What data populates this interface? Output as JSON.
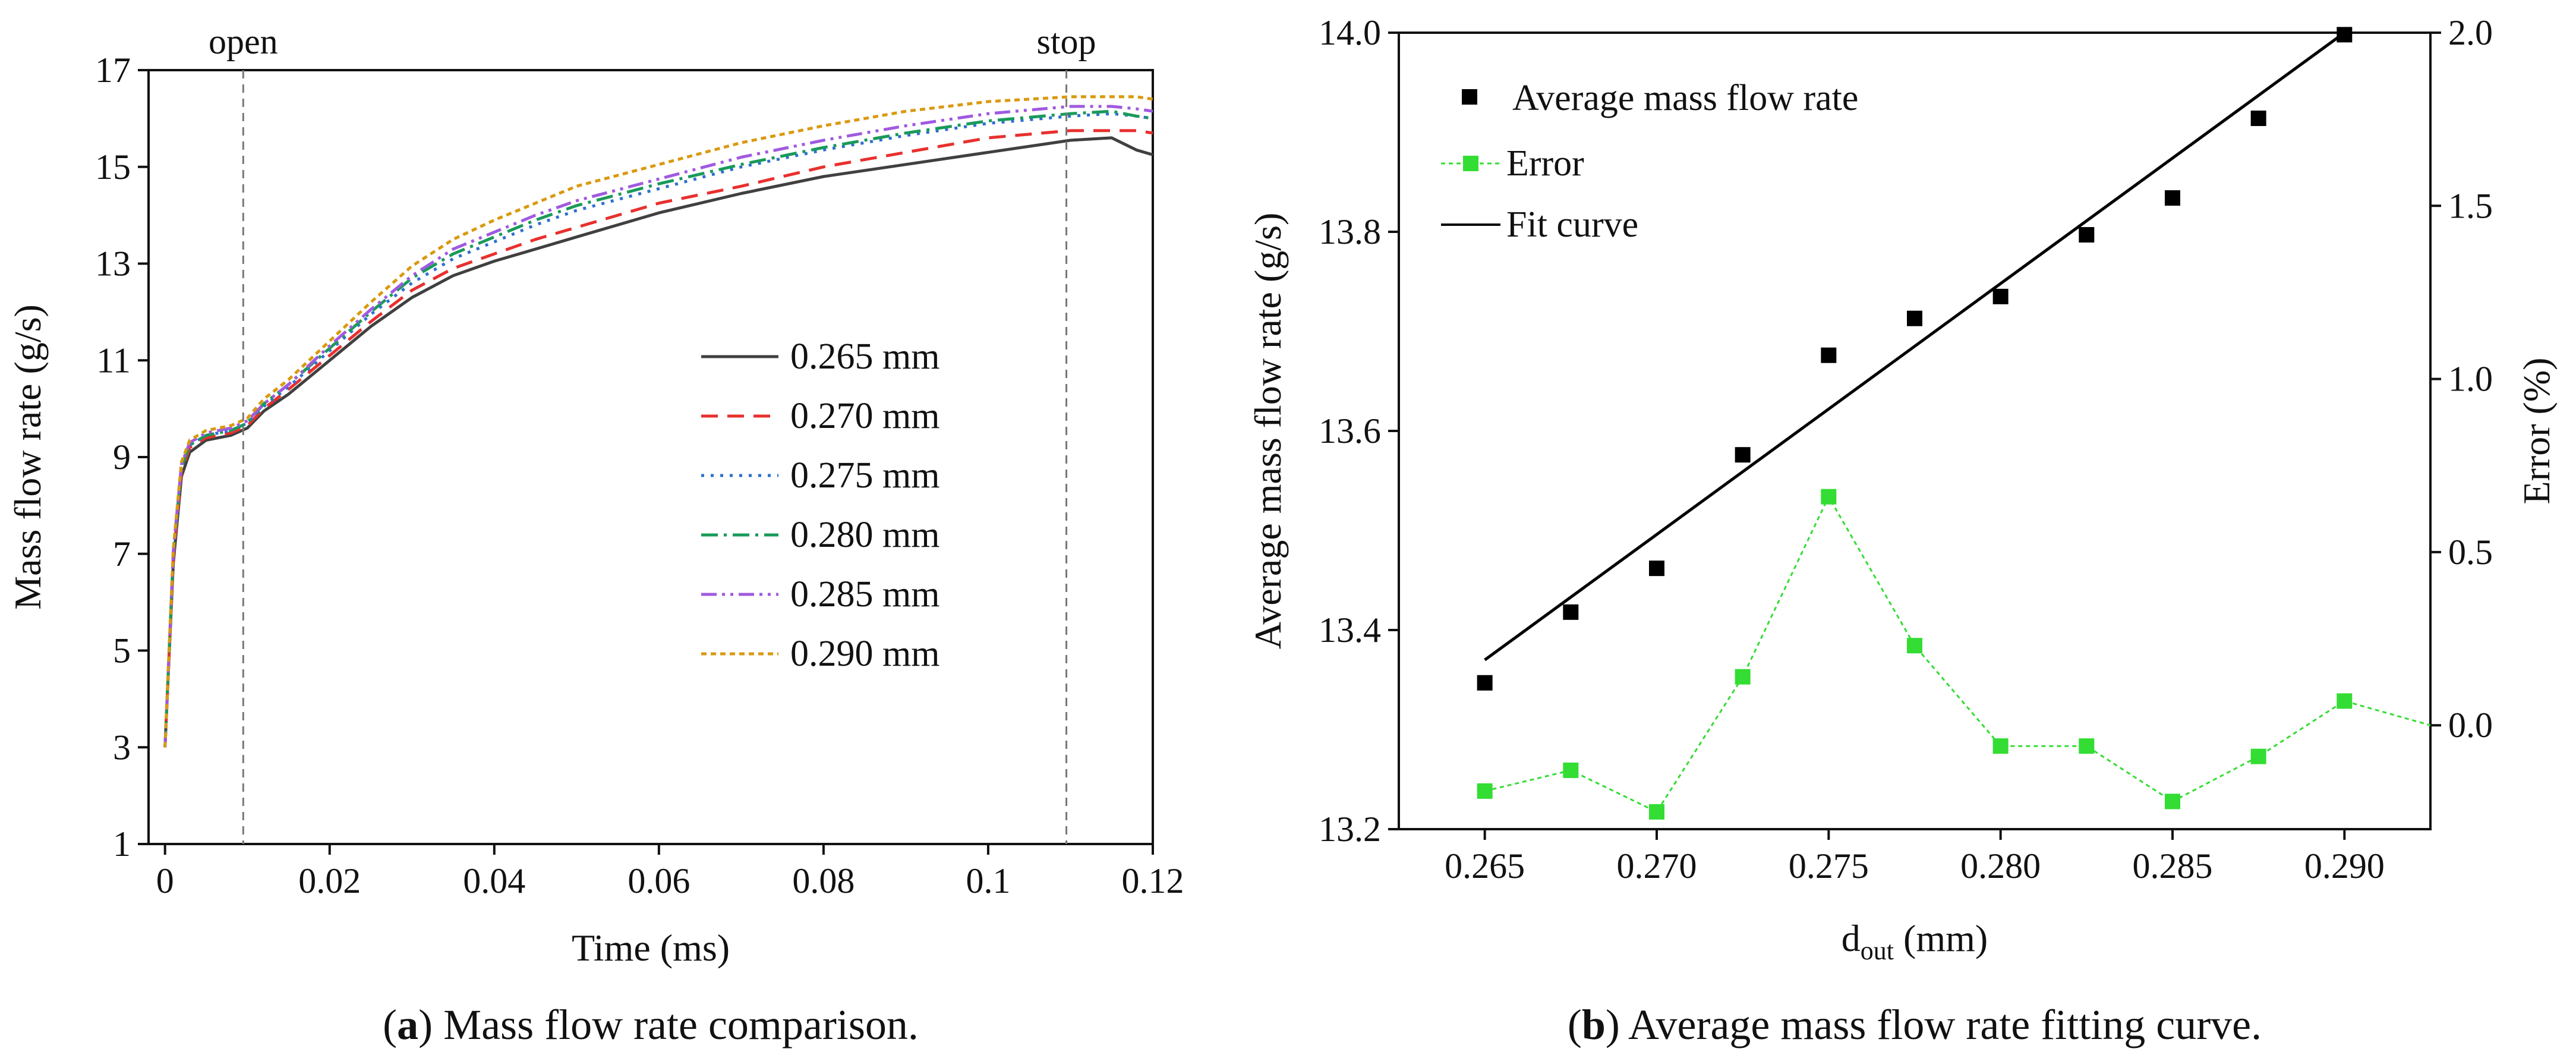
{
  "chart_data": [
    {
      "type": "line",
      "panel": "a",
      "caption": {
        "letter": "a",
        "text": ") Mass flow rate comparison."
      },
      "xlabel": "Time (ms)",
      "ylabel": "Mass flow rate (g/s)",
      "xlim": [
        -0.002,
        0.12
      ],
      "ylim": [
        1,
        17
      ],
      "xticks": [
        0,
        0.02,
        0.04,
        0.06,
        0.08,
        0.1,
        0.12
      ],
      "xtick_labels": [
        "0",
        "0.02",
        "0.04",
        "0.06",
        "0.08",
        "0.1",
        "0.12"
      ],
      "yticks": [
        1,
        3,
        5,
        7,
        9,
        11,
        13,
        15,
        17
      ],
      "ytick_labels": [
        "1",
        "3",
        "5",
        "7",
        "9",
        "11",
        "13",
        "15",
        "17"
      ],
      "markers": [
        {
          "label": "open",
          "x": 0.0095
        },
        {
          "label": "stop",
          "x": 0.1095
        }
      ],
      "legend_position": "center-right",
      "x": [
        0,
        0.001,
        0.002,
        0.003,
        0.005,
        0.008,
        0.01,
        0.012,
        0.015,
        0.02,
        0.025,
        0.03,
        0.035,
        0.04,
        0.045,
        0.05,
        0.06,
        0.07,
        0.08,
        0.09,
        0.1,
        0.11,
        0.115,
        0.118,
        0.12
      ],
      "series": [
        {
          "name": "0.265 mm",
          "color": "#404040",
          "dash": "",
          "width": 5,
          "values": [
            3.0,
            6.8,
            8.6,
            9.1,
            9.35,
            9.45,
            9.6,
            9.95,
            10.3,
            11.0,
            11.7,
            12.3,
            12.75,
            13.05,
            13.3,
            13.55,
            14.05,
            14.45,
            14.8,
            15.05,
            15.3,
            15.55,
            15.6,
            15.35,
            15.25
          ]
        },
        {
          "name": "0.270 mm",
          "color": "#e8302e",
          "dash": "28 16",
          "width": 5,
          "values": [
            3.0,
            6.9,
            8.7,
            9.2,
            9.4,
            9.5,
            9.65,
            10.0,
            10.4,
            11.1,
            11.8,
            12.45,
            12.9,
            13.2,
            13.5,
            13.75,
            14.25,
            14.6,
            15.0,
            15.3,
            15.6,
            15.75,
            15.75,
            15.75,
            15.7
          ]
        },
        {
          "name": "0.275 mm",
          "color": "#2f6fd0",
          "dash": "5 11",
          "width": 5,
          "values": [
            3.0,
            7.0,
            8.8,
            9.25,
            9.45,
            9.55,
            9.7,
            10.05,
            10.45,
            11.2,
            11.95,
            12.6,
            13.1,
            13.45,
            13.8,
            14.1,
            14.55,
            15.0,
            15.35,
            15.65,
            15.9,
            16.05,
            16.1,
            16.05,
            16.0
          ]
        },
        {
          "name": "0.280 mm",
          "color": "#1a9a5a",
          "dash": "28 10 5 10",
          "width": 5,
          "values": [
            3.0,
            7.0,
            8.8,
            9.25,
            9.45,
            9.55,
            9.7,
            10.1,
            10.5,
            11.25,
            12.0,
            12.7,
            13.2,
            13.55,
            13.9,
            14.2,
            14.65,
            15.05,
            15.4,
            15.7,
            15.95,
            16.1,
            16.15,
            16.05,
            16.0
          ]
        },
        {
          "name": "0.285 mm",
          "color": "#a05ae0",
          "dash": "26 9 5 9 5 9",
          "width": 5,
          "values": [
            3.0,
            7.05,
            8.85,
            9.3,
            9.5,
            9.6,
            9.75,
            10.1,
            10.5,
            11.3,
            12.05,
            12.75,
            13.3,
            13.65,
            14.0,
            14.3,
            14.75,
            15.2,
            15.55,
            15.85,
            16.1,
            16.25,
            16.25,
            16.2,
            16.15
          ]
        },
        {
          "name": "0.290 mm",
          "color": "#d99a10",
          "dash": "9 7",
          "width": 5,
          "values": [
            3.0,
            7.1,
            8.9,
            9.35,
            9.55,
            9.65,
            9.8,
            10.2,
            10.6,
            11.4,
            12.2,
            12.95,
            13.5,
            13.9,
            14.25,
            14.6,
            15.05,
            15.5,
            15.85,
            16.15,
            16.35,
            16.45,
            16.45,
            16.45,
            16.4
          ]
        }
      ]
    },
    {
      "type": "scatter",
      "panel": "b",
      "caption": {
        "letter": "b",
        "text": ") Average mass flow rate fitting curve."
      },
      "xlabel": "d",
      "xlabel_sub": "out",
      "xlabel_unit": " (mm)",
      "ylabel": "Average mass flow rate (g/s)",
      "y2label": "Error (%)",
      "xlim": [
        0.2625,
        0.2925
      ],
      "ylim": [
        13.2,
        14.0
      ],
      "y2lim": [
        -0.3,
        2.0
      ],
      "xticks": [
        0.265,
        0.27,
        0.275,
        0.28,
        0.285,
        0.29
      ],
      "xtick_labels": [
        "0.265",
        "0.270",
        "0.275",
        "0.280",
        "0.285",
        "0.290"
      ],
      "yticks": [
        13.2,
        13.4,
        13.6,
        13.8,
        14.0
      ],
      "ytick_labels": [
        "13.2",
        "13.4",
        "13.6",
        "13.8",
        "14.0"
      ],
      "y2ticks": [
        0.0,
        0.5,
        1.0,
        1.5,
        2.0
      ],
      "y2tick_labels": [
        "0.0",
        "0.5",
        "1.0",
        "1.5",
        "2.0"
      ],
      "legend_position": "top-left",
      "legend": [
        "Average mass flow rate",
        "Error",
        "Fit curve"
      ],
      "x": [
        0.265,
        0.2675,
        0.27,
        0.2725,
        0.275,
        0.2775,
        0.28,
        0.2825,
        0.285,
        0.2875,
        0.29
      ],
      "series": [
        {
          "name": "Average mass flow rate",
          "axis": "left",
          "color": "#000000",
          "values": [
            13.347,
            13.418,
            13.462,
            13.576,
            13.676,
            13.713,
            13.735,
            13.797,
            13.834,
            13.914,
            13.998
          ]
        },
        {
          "name": "Error",
          "axis": "right",
          "color": "#33dd33",
          "values": [
            -0.19,
            -0.13,
            -0.25,
            0.14,
            0.66,
            0.23,
            -0.06,
            -0.06,
            -0.22,
            -0.09,
            0.07
          ]
        },
        {
          "name": "Fit curve",
          "axis": "left",
          "color": "#000000",
          "type": "line",
          "x": [
            0.265,
            0.29
          ],
          "values": [
            13.37,
            14.0
          ]
        }
      ],
      "error_tail": {
        "x": 0.2925,
        "value": 0.0
      }
    }
  ]
}
